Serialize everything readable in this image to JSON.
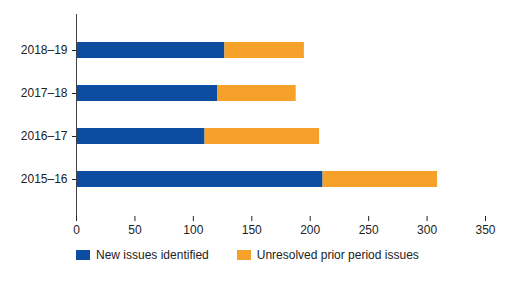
{
  "chart_data": {
    "type": "bar",
    "orientation": "horizontal",
    "stacked": true,
    "categories": [
      "2018–19",
      "2017–18",
      "2016–17",
      "2015–16"
    ],
    "series": [
      {
        "name": "New issues identified",
        "color": "#0c4da2",
        "values": [
          127,
          121,
          110,
          211
        ]
      },
      {
        "name": "Unresolved prior period issues",
        "color": "#f5a12a",
        "values": [
          68,
          67,
          98,
          98
        ]
      }
    ],
    "xlim": [
      0,
      350
    ],
    "xticks": [
      0,
      50,
      100,
      150,
      200,
      250,
      300,
      350
    ],
    "grid": false,
    "legend": "bottom"
  }
}
